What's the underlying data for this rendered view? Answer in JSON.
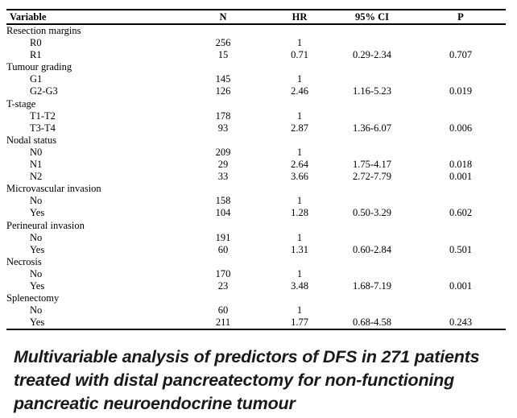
{
  "table": {
    "columns": [
      "Variable",
      "N",
      "HR",
      "95% CI",
      "P"
    ],
    "groups": [
      {
        "label": "Resection margins",
        "rows": [
          {
            "variable": "R0",
            "n": "256",
            "hr": "1",
            "ci": "",
            "p": ""
          },
          {
            "variable": "R1",
            "n": "15",
            "hr": "0.71",
            "ci": "0.29-2.34",
            "p": "0.707"
          }
        ]
      },
      {
        "label": "Tumour grading",
        "rows": [
          {
            "variable": "G1",
            "n": "145",
            "hr": "1",
            "ci": "",
            "p": ""
          },
          {
            "variable": "G2-G3",
            "n": "126",
            "hr": "2.46",
            "ci": "1.16-5.23",
            "p": "0.019"
          }
        ]
      },
      {
        "label": "T-stage",
        "rows": [
          {
            "variable": "T1-T2",
            "n": "178",
            "hr": "1",
            "ci": "",
            "p": ""
          },
          {
            "variable": "T3-T4",
            "n": "93",
            "hr": "2.87",
            "ci": "1.36-6.07",
            "p": "0.006"
          }
        ]
      },
      {
        "label": "Nodal status",
        "rows": [
          {
            "variable": "N0",
            "n": "209",
            "hr": "1",
            "ci": "",
            "p": ""
          },
          {
            "variable": "N1",
            "n": "29",
            "hr": "2.64",
            "ci": "1.75-4.17",
            "p": "0.018"
          },
          {
            "variable": "N2",
            "n": "33",
            "hr": "3.66",
            "ci": "2.72-7.79",
            "p": "0.001"
          }
        ]
      },
      {
        "label": "Microvascular invasion",
        "rows": [
          {
            "variable": "No",
            "n": "158",
            "hr": "1",
            "ci": "",
            "p": ""
          },
          {
            "variable": "Yes",
            "n": "104",
            "hr": "1.28",
            "ci": "0.50-3.29",
            "p": "0.602"
          }
        ]
      },
      {
        "label": "Perineural invasion",
        "rows": [
          {
            "variable": "No",
            "n": "191",
            "hr": "1",
            "ci": "",
            "p": ""
          },
          {
            "variable": "Yes",
            "n": "60",
            "hr": "1.31",
            "ci": "0.60-2.84",
            "p": "0.501"
          }
        ]
      },
      {
        "label": "Necrosis",
        "rows": [
          {
            "variable": "No",
            "n": "170",
            "hr": "1",
            "ci": "",
            "p": ""
          },
          {
            "variable": "Yes",
            "n": "23",
            "hr": "3.48",
            "ci": "1.68-7.19",
            "p": "0.001"
          }
        ]
      },
      {
        "label": "Splenectomy",
        "rows": [
          {
            "variable": "No",
            "n": "60",
            "hr": "1",
            "ci": "",
            "p": ""
          },
          {
            "variable": "Yes",
            "n": "211",
            "hr": "1.77",
            "ci": "0.68-4.58",
            "p": "0.243"
          }
        ]
      }
    ]
  },
  "caption": {
    "lines": [
      "Multivariable analysis of predictors of DFS in 271 patients",
      "treated with distal pancreatectomy for non-functioning",
      "pancreatic neuroendocrine tumour"
    ],
    "full_text": "Multivariable analysis of predictors of DFS in 271 patients treated with distal pancreatectomy for non-functioning pancreatic neuroendocrine tumour"
  },
  "colors": {
    "background": "#ffffff",
    "table_text": "#000000",
    "rule": "#000000",
    "caption_text": "#1a1a1a"
  }
}
